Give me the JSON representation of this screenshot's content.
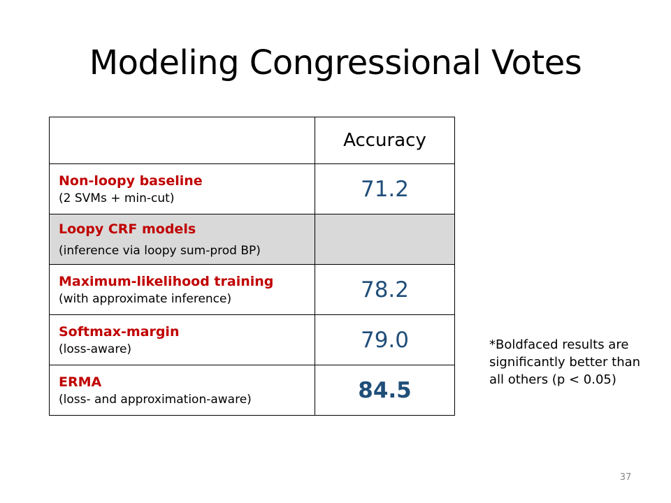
{
  "slide": {
    "title": "Modeling Congressional Votes",
    "page_number": "37"
  },
  "table": {
    "header": {
      "method": "",
      "accuracy": "Accuracy"
    },
    "rows": [
      {
        "name": "Non-loopy baseline",
        "description": "(2 SVMs + min-cut)",
        "accuracy": "71.2",
        "bold": false,
        "shaded": false
      },
      {
        "name": "Loopy CRF models",
        "description": "(inference via loopy sum-prod BP)",
        "accuracy": "",
        "bold": false,
        "shaded": true
      },
      {
        "name": "Maximum-likelihood training",
        "description": "(with approximate inference)",
        "accuracy": "78.2",
        "bold": false,
        "shaded": false
      },
      {
        "name": "Softmax-margin",
        "description": "(loss-aware)",
        "accuracy": "79.0",
        "bold": false,
        "shaded": false
      },
      {
        "name": "ERMA",
        "description": "(loss- and approximation-aware)",
        "accuracy": "84.5",
        "bold": true,
        "shaded": false
      }
    ]
  },
  "footnote": "*Boldfaced results are significantly better than all others (p < 0.05)",
  "colors": {
    "method_name": "#c00000",
    "accuracy_value": "#1f4e79",
    "shaded_row": "#d9d9d9"
  }
}
